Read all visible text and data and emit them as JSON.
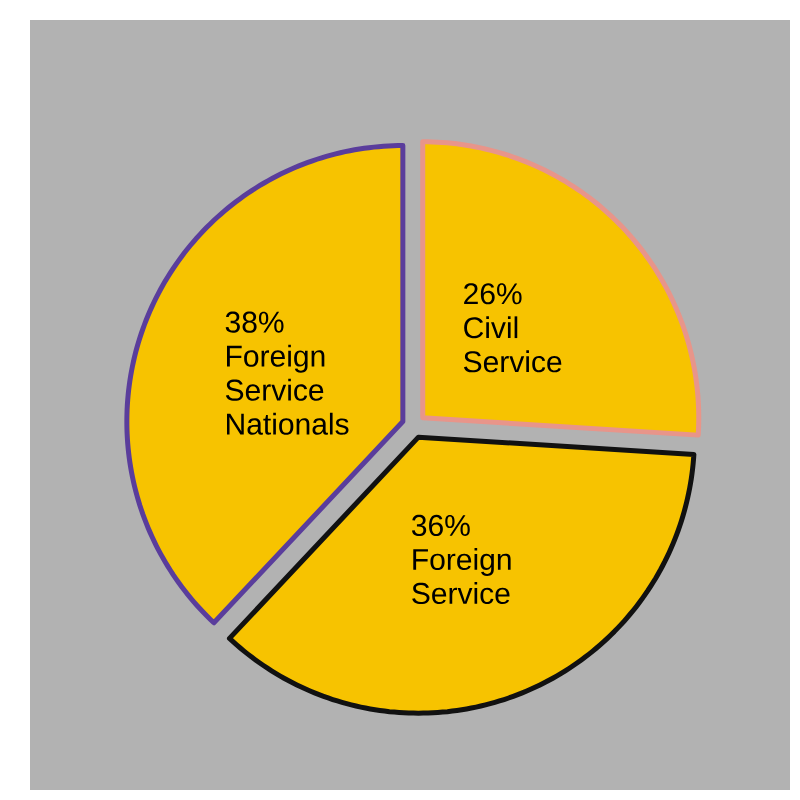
{
  "chart_data": {
    "type": "pie",
    "categories": [
      "Civil Service",
      "Foreign Service",
      "Foreign Service Nationals"
    ],
    "values": [
      26,
      36,
      38
    ],
    "value_labels": [
      "26%",
      "36%",
      "38%"
    ],
    "colors": [
      "#f7c300",
      "#f7c300",
      "#f7c300"
    ]
  }
}
